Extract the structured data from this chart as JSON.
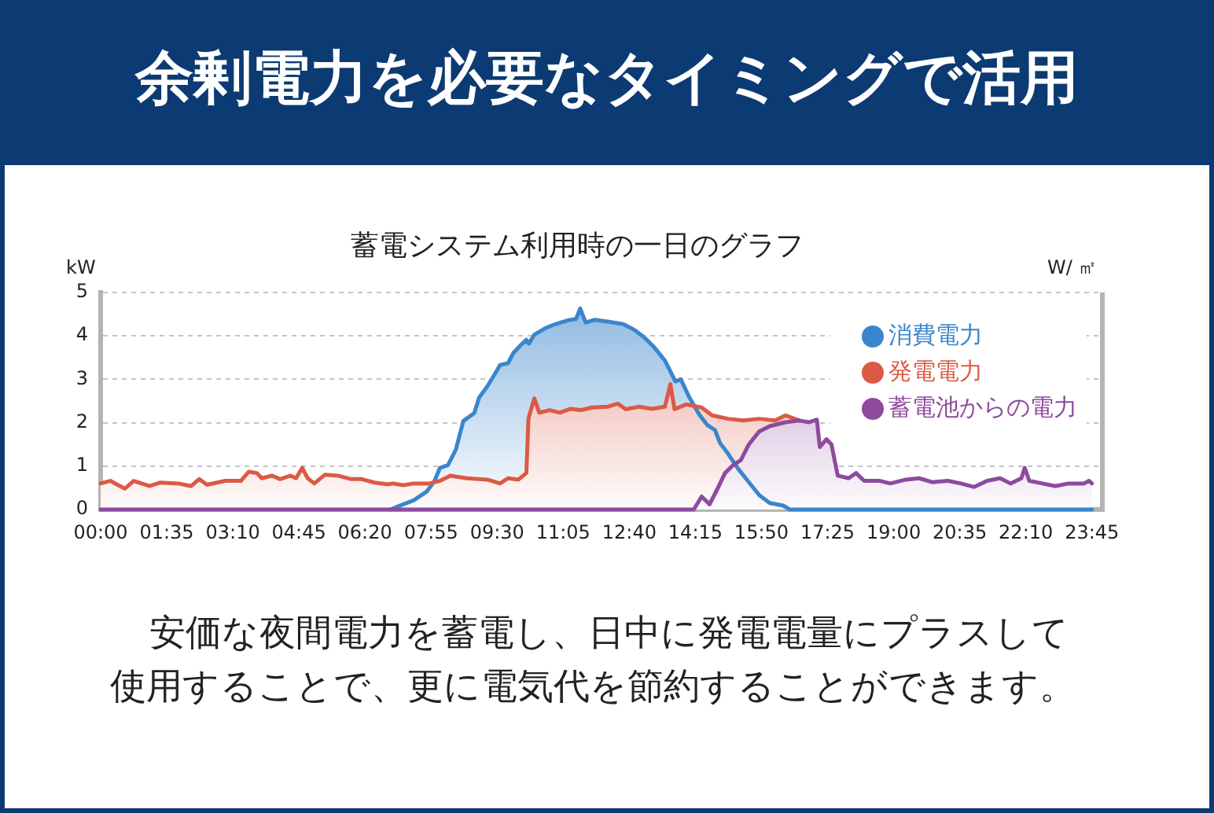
{
  "chart_data": {
    "type": "area",
    "title": "余剰電力を必要なタイミングで活用",
    "subtitle": "蓄電システム利用時の一日のグラフ",
    "ylabel": "kW",
    "y2label": "W/ ㎡",
    "annotations": [
      "安価な夜間電力を蓄電し、日中に発電電量にプラスして使用することで、更に電気代を節約することができます。"
    ],
    "xlim": [
      0,
      24
    ],
    "xticks": [
      {
        "value": 0,
        "label": "00:00"
      },
      {
        "value": 1.583,
        "label": "01:35"
      },
      {
        "value": 3.167,
        "label": "03:10"
      },
      {
        "value": 4.75,
        "label": "04:45"
      },
      {
        "value": 6.333,
        "label": "06:20"
      },
      {
        "value": 7.917,
        "label": "07:55"
      },
      {
        "value": 9.5,
        "label": "09:30"
      },
      {
        "value": 11.083,
        "label": "11:05"
      },
      {
        "value": 12.667,
        "label": "12:40"
      },
      {
        "value": 14.25,
        "label": "14:15"
      },
      {
        "value": 15.833,
        "label": "15:50"
      },
      {
        "value": 17.417,
        "label": "17:25"
      },
      {
        "value": 19,
        "label": "19:00"
      },
      {
        "value": 20.583,
        "label": "20:35"
      },
      {
        "value": 22.167,
        "label": "22:10"
      },
      {
        "value": 23.75,
        "label": "23:45"
      }
    ],
    "ylim": [
      0,
      5
    ],
    "yticks": [
      0,
      1,
      2,
      3,
      4,
      5
    ],
    "grid": "y",
    "legend": "top right",
    "series": [
      {
        "name": "消費電力",
        "color": "#3a86cc",
        "x": [
          6.94,
          7.25,
          7.5,
          7.82,
          8.0,
          8.13,
          8.32,
          8.51,
          8.69,
          8.95,
          9.07,
          9.26,
          9.45,
          9.57,
          9.76,
          9.89,
          10.07,
          10.2,
          10.26,
          10.39,
          10.64,
          10.89,
          11.2,
          11.39,
          11.49,
          11.62,
          11.83,
          12.15,
          12.52,
          12.77,
          13.02,
          13.27,
          13.52,
          13.71,
          13.77,
          13.9,
          14.09,
          14.34,
          14.53,
          14.72,
          14.84,
          15.03,
          15.28,
          15.53,
          15.78,
          16.03,
          16.35,
          16.51,
          23.75
        ],
        "values": [
          0,
          0.12,
          0.21,
          0.42,
          0.66,
          0.96,
          1.02,
          1.38,
          2.04,
          2.22,
          2.58,
          2.83,
          3.13,
          3.33,
          3.37,
          3.61,
          3.79,
          3.91,
          3.82,
          4.03,
          4.17,
          4.27,
          4.36,
          4.39,
          4.63,
          4.31,
          4.37,
          4.33,
          4.27,
          4.15,
          3.97,
          3.73,
          3.43,
          3.07,
          2.95,
          3.0,
          2.61,
          2.19,
          1.95,
          1.83,
          1.53,
          1.29,
          0.93,
          0.63,
          0.33,
          0.15,
          0.09,
          0,
          0
        ]
      },
      {
        "name": "発電電力",
        "color": "#dc5a45",
        "x": [
          0,
          0.23,
          0.58,
          0.79,
          1.17,
          1.42,
          1.86,
          2.17,
          2.36,
          2.55,
          2.99,
          3.36,
          3.55,
          3.74,
          3.86,
          4.11,
          4.3,
          4.55,
          4.68,
          4.83,
          4.96,
          5.12,
          5.37,
          5.68,
          6.0,
          6.25,
          6.56,
          6.88,
          7.0,
          7.25,
          7.5,
          7.88,
          8.13,
          8.38,
          8.76,
          9.26,
          9.57,
          9.76,
          10.01,
          10.2,
          10.25,
          10.39,
          10.51,
          10.76,
          11.0,
          11.26,
          11.51,
          11.77,
          12.15,
          12.39,
          12.58,
          12.9,
          13.21,
          13.52,
          13.65,
          13.75,
          14.03,
          14.4,
          14.65,
          15.03,
          15.4,
          15.78,
          16.16,
          16.41,
          16.6,
          16.75
        ],
        "values": [
          0.6,
          0.66,
          0.48,
          0.66,
          0.54,
          0.62,
          0.6,
          0.54,
          0.7,
          0.57,
          0.66,
          0.66,
          0.87,
          0.84,
          0.72,
          0.78,
          0.7,
          0.78,
          0.72,
          0.96,
          0.72,
          0.6,
          0.8,
          0.78,
          0.7,
          0.7,
          0.62,
          0.58,
          0.6,
          0.56,
          0.6,
          0.6,
          0.66,
          0.78,
          0.72,
          0.69,
          0.6,
          0.72,
          0.69,
          0.84,
          2.1,
          2.56,
          2.23,
          2.29,
          2.23,
          2.32,
          2.29,
          2.35,
          2.37,
          2.44,
          2.31,
          2.37,
          2.32,
          2.37,
          2.89,
          2.31,
          2.42,
          2.35,
          2.17,
          2.09,
          2.05,
          2.09,
          2.05,
          2.17,
          2.1,
          2.05
        ]
      },
      {
        "name": "蓄電池からの電力",
        "color": "#8d4a9e",
        "x": [
          0,
          14.21,
          14.4,
          14.59,
          14.78,
          14.96,
          15.15,
          15.34,
          15.53,
          15.78,
          16.03,
          16.41,
          16.73,
          16.97,
          17.16,
          17.23,
          17.39,
          17.51,
          17.66,
          17.92,
          18.1,
          18.29,
          18.67,
          18.92,
          19.3,
          19.61,
          19.92,
          20.3,
          20.61,
          20.93,
          21.24,
          21.55,
          21.8,
          22.06,
          22.14,
          22.25,
          22.56,
          22.87,
          23.19,
          23.56,
          23.68,
          23.75
        ],
        "values": [
          0,
          0,
          0.3,
          0.12,
          0.48,
          0.84,
          1.02,
          1.14,
          1.5,
          1.8,
          1.92,
          2.01,
          2.05,
          2.01,
          2.07,
          1.44,
          1.62,
          1.5,
          0.78,
          0.72,
          0.84,
          0.66,
          0.66,
          0.6,
          0.69,
          0.72,
          0.63,
          0.66,
          0.6,
          0.52,
          0.66,
          0.72,
          0.6,
          0.72,
          0.96,
          0.66,
          0.6,
          0.54,
          0.6,
          0.6,
          0.66,
          0.6
        ]
      }
    ]
  }
}
